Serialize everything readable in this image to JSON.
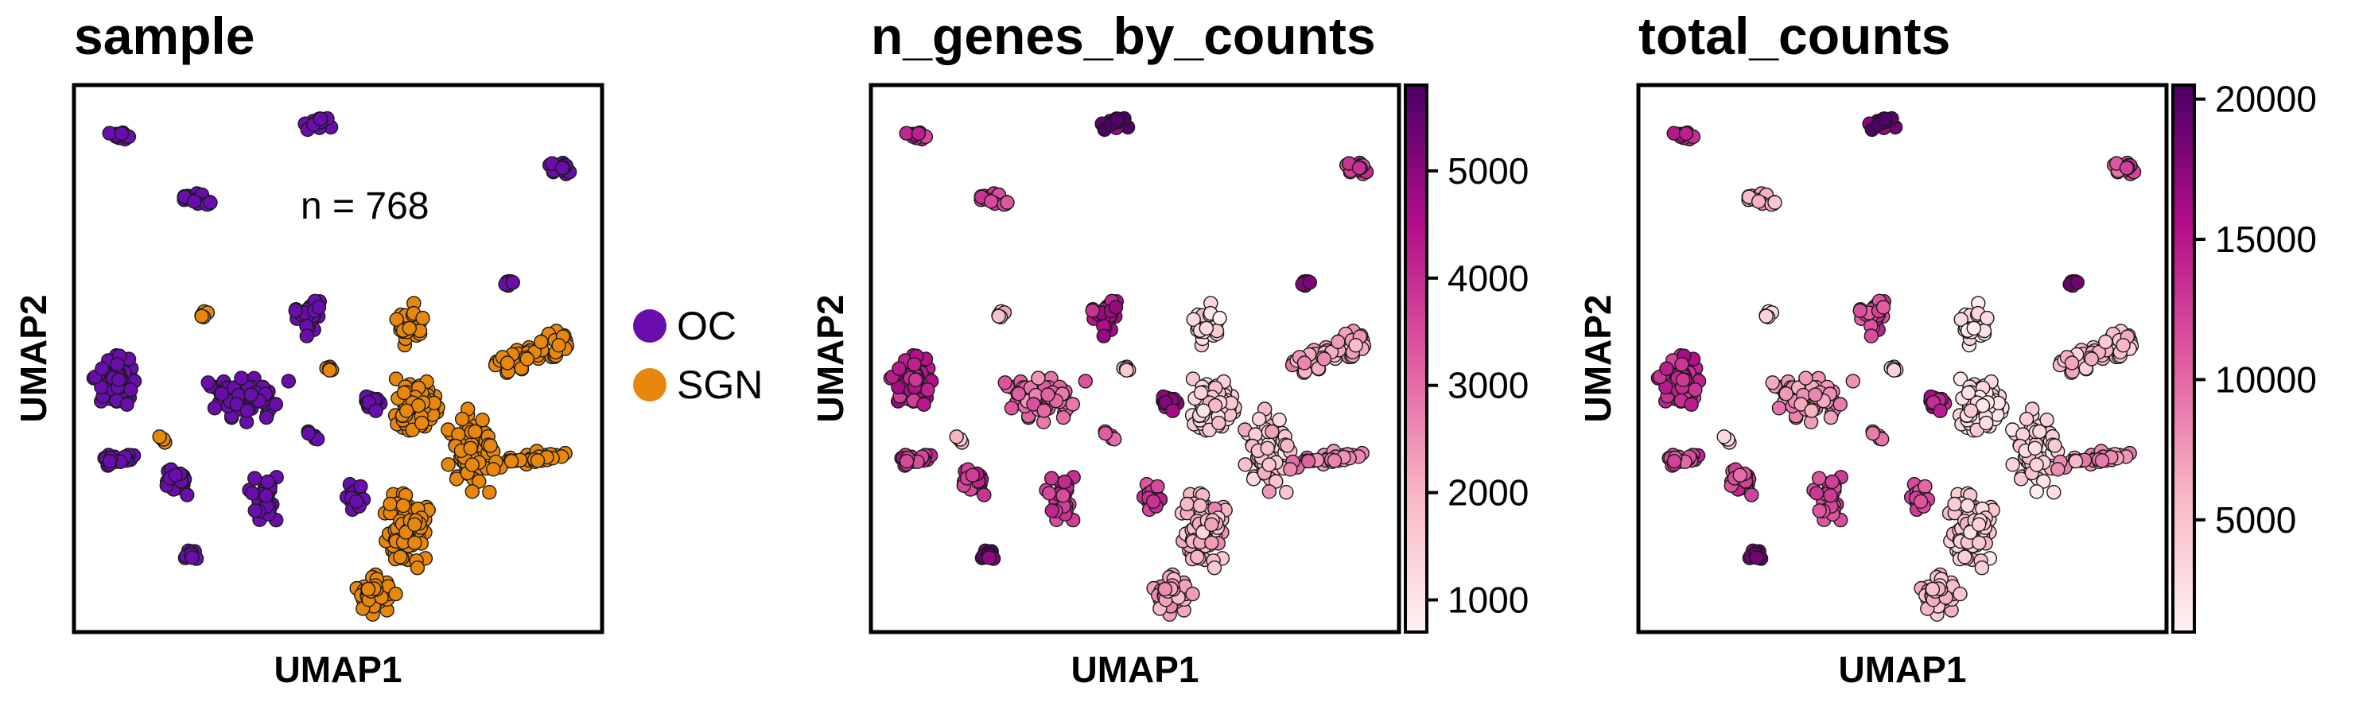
{
  "chart_data": [
    {
      "type": "scatter",
      "title": "sample",
      "xlabel": "UMAP1",
      "ylabel": "UMAP2",
      "annotation": "n = 768",
      "color_by": "category",
      "legend": {
        "placement": "right",
        "entries": [
          {
            "label": "OC",
            "color": "#6a0dad"
          },
          {
            "label": "SGN",
            "color": "#e8870b"
          }
        ]
      }
    },
    {
      "type": "scatter",
      "title": "n_genes_by_counts",
      "xlabel": "UMAP1",
      "ylabel": "UMAP2",
      "color_by": "continuous",
      "colorbar": {
        "range": [
          700,
          5800
        ],
        "ticks": [
          1000,
          2000,
          3000,
          4000,
          5000
        ],
        "colormap": [
          "#fff2f2",
          "#f8b7c4",
          "#e05aa0",
          "#b10c88",
          "#4a0166"
        ]
      }
    },
    {
      "type": "scatter",
      "title": "total_counts",
      "xlabel": "UMAP1",
      "ylabel": "UMAP2",
      "color_by": "continuous",
      "colorbar": {
        "range": [
          1000,
          20500
        ],
        "ticks": [
          5000,
          10000,
          15000,
          20000
        ],
        "colormap": [
          "#fff2f2",
          "#f8b7c4",
          "#e05aa0",
          "#b10c88",
          "#4a0166"
        ]
      }
    }
  ]
}
